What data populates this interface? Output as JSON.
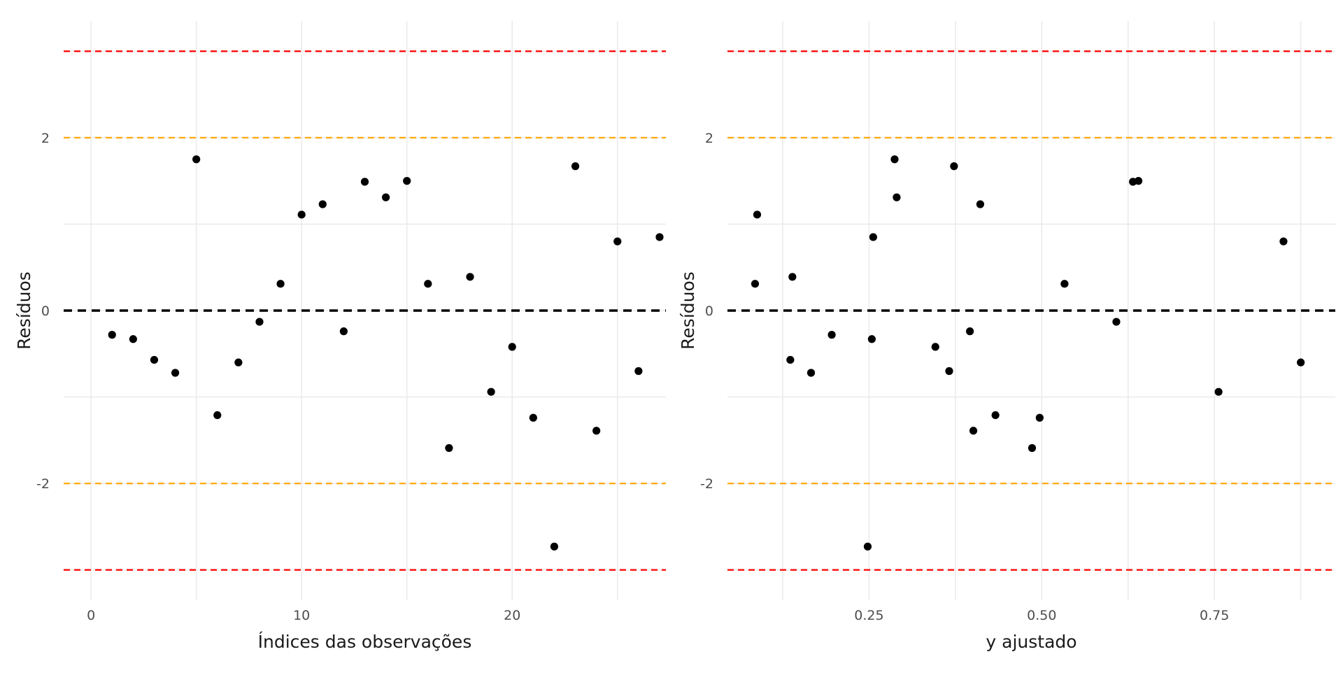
{
  "chart_data": [
    {
      "type": "scatter",
      "xlabel": "Índices das observações",
      "ylabel": "Resíduos",
      "xlim": [
        -1.3,
        27.3
      ],
      "ylim": [
        -3.35,
        3.35
      ],
      "xticks": [
        0,
        10,
        20
      ],
      "xtick_labels": [
        "0",
        "10",
        "20"
      ],
      "xminor": [
        5,
        15,
        25
      ],
      "yticks": [
        -2,
        0,
        2
      ],
      "ytick_labels": [
        "-2",
        "0",
        "2"
      ],
      "yminor": [
        -3,
        -1,
        1,
        3
      ],
      "grid": true,
      "reference_lines": [
        {
          "y": 0,
          "color": "#000000"
        },
        {
          "y": 2,
          "color": "#FFA500"
        },
        {
          "y": -2,
          "color": "#FFA500"
        },
        {
          "y": 3,
          "color": "#FF0000"
        },
        {
          "y": -3,
          "color": "#FF0000"
        }
      ],
      "point_color": "#000000",
      "points": [
        {
          "x": 1,
          "y": -0.28
        },
        {
          "x": 2,
          "y": -0.33
        },
        {
          "x": 3,
          "y": -0.57
        },
        {
          "x": 4,
          "y": -0.72
        },
        {
          "x": 5,
          "y": 1.75
        },
        {
          "x": 6,
          "y": -1.21
        },
        {
          "x": 7,
          "y": -0.6
        },
        {
          "x": 8,
          "y": -0.13
        },
        {
          "x": 9,
          "y": 0.31
        },
        {
          "x": 10,
          "y": 1.11
        },
        {
          "x": 11,
          "y": 1.23
        },
        {
          "x": 12,
          "y": -0.24
        },
        {
          "x": 13,
          "y": 1.49
        },
        {
          "x": 14,
          "y": 1.31
        },
        {
          "x": 15,
          "y": 1.5
        },
        {
          "x": 16,
          "y": 0.31
        },
        {
          "x": 17,
          "y": -1.59
        },
        {
          "x": 18,
          "y": 0.39
        },
        {
          "x": 19,
          "y": -0.94
        },
        {
          "x": 20,
          "y": -0.42
        },
        {
          "x": 21,
          "y": -1.24
        },
        {
          "x": 22,
          "y": -2.73
        },
        {
          "x": 23,
          "y": 1.67
        },
        {
          "x": 24,
          "y": -1.39
        },
        {
          "x": 25,
          "y": 0.8
        },
        {
          "x": 26,
          "y": -0.7
        },
        {
          "x": 27,
          "y": 0.85
        }
      ]
    },
    {
      "type": "scatter",
      "xlabel": "y ajustado",
      "ylabel": "Resíduos",
      "xlim": [
        0.045,
        0.925
      ],
      "ylim": [
        -3.35,
        3.35
      ],
      "xticks": [
        0.25,
        0.5,
        0.75
      ],
      "xtick_labels": [
        "0.25",
        "0.50",
        "0.75"
      ],
      "xminor": [
        0.125,
        0.375,
        0.625,
        0.875
      ],
      "yticks": [
        -2,
        0,
        2
      ],
      "ytick_labels": [
        "-2",
        "0",
        "2"
      ],
      "yminor": [
        -3,
        -1,
        1,
        3
      ],
      "grid": true,
      "reference_lines": [
        {
          "y": 0,
          "color": "#000000"
        },
        {
          "y": 2,
          "color": "#FFA500"
        },
        {
          "y": -2,
          "color": "#FFA500"
        },
        {
          "y": 3,
          "color": "#FF0000"
        },
        {
          "y": -3,
          "color": "#FF0000"
        }
      ],
      "point_color": "#000000",
      "points": [
        {
          "x": 0.085,
          "y": 0.31
        },
        {
          "x": 0.088,
          "y": 1.11
        },
        {
          "x": 0.136,
          "y": -0.57
        },
        {
          "x": 0.139,
          "y": 0.39
        },
        {
          "x": 0.166,
          "y": -0.72
        },
        {
          "x": 0.196,
          "y": -0.28
        },
        {
          "x": 0.248,
          "y": -2.73
        },
        {
          "x": 0.254,
          "y": -0.33
        },
        {
          "x": 0.256,
          "y": 0.85
        },
        {
          "x": 0.287,
          "y": 1.75
        },
        {
          "x": 0.29,
          "y": 1.31
        },
        {
          "x": 0.346,
          "y": -0.42
        },
        {
          "x": 0.366,
          "y": -0.7
        },
        {
          "x": 0.373,
          "y": 1.67
        },
        {
          "x": 0.396,
          "y": -0.24
        },
        {
          "x": 0.401,
          "y": -1.39
        },
        {
          "x": 0.411,
          "y": 1.23
        },
        {
          "x": 0.433,
          "y": -1.21
        },
        {
          "x": 0.486,
          "y": -1.59
        },
        {
          "x": 0.497,
          "y": -1.24
        },
        {
          "x": 0.533,
          "y": 0.31
        },
        {
          "x": 0.608,
          "y": -0.13
        },
        {
          "x": 0.632,
          "y": 1.49
        },
        {
          "x": 0.64,
          "y": 1.5
        },
        {
          "x": 0.756,
          "y": -0.94
        },
        {
          "x": 0.85,
          "y": 0.8
        },
        {
          "x": 0.875,
          "y": -0.6
        }
      ]
    }
  ]
}
